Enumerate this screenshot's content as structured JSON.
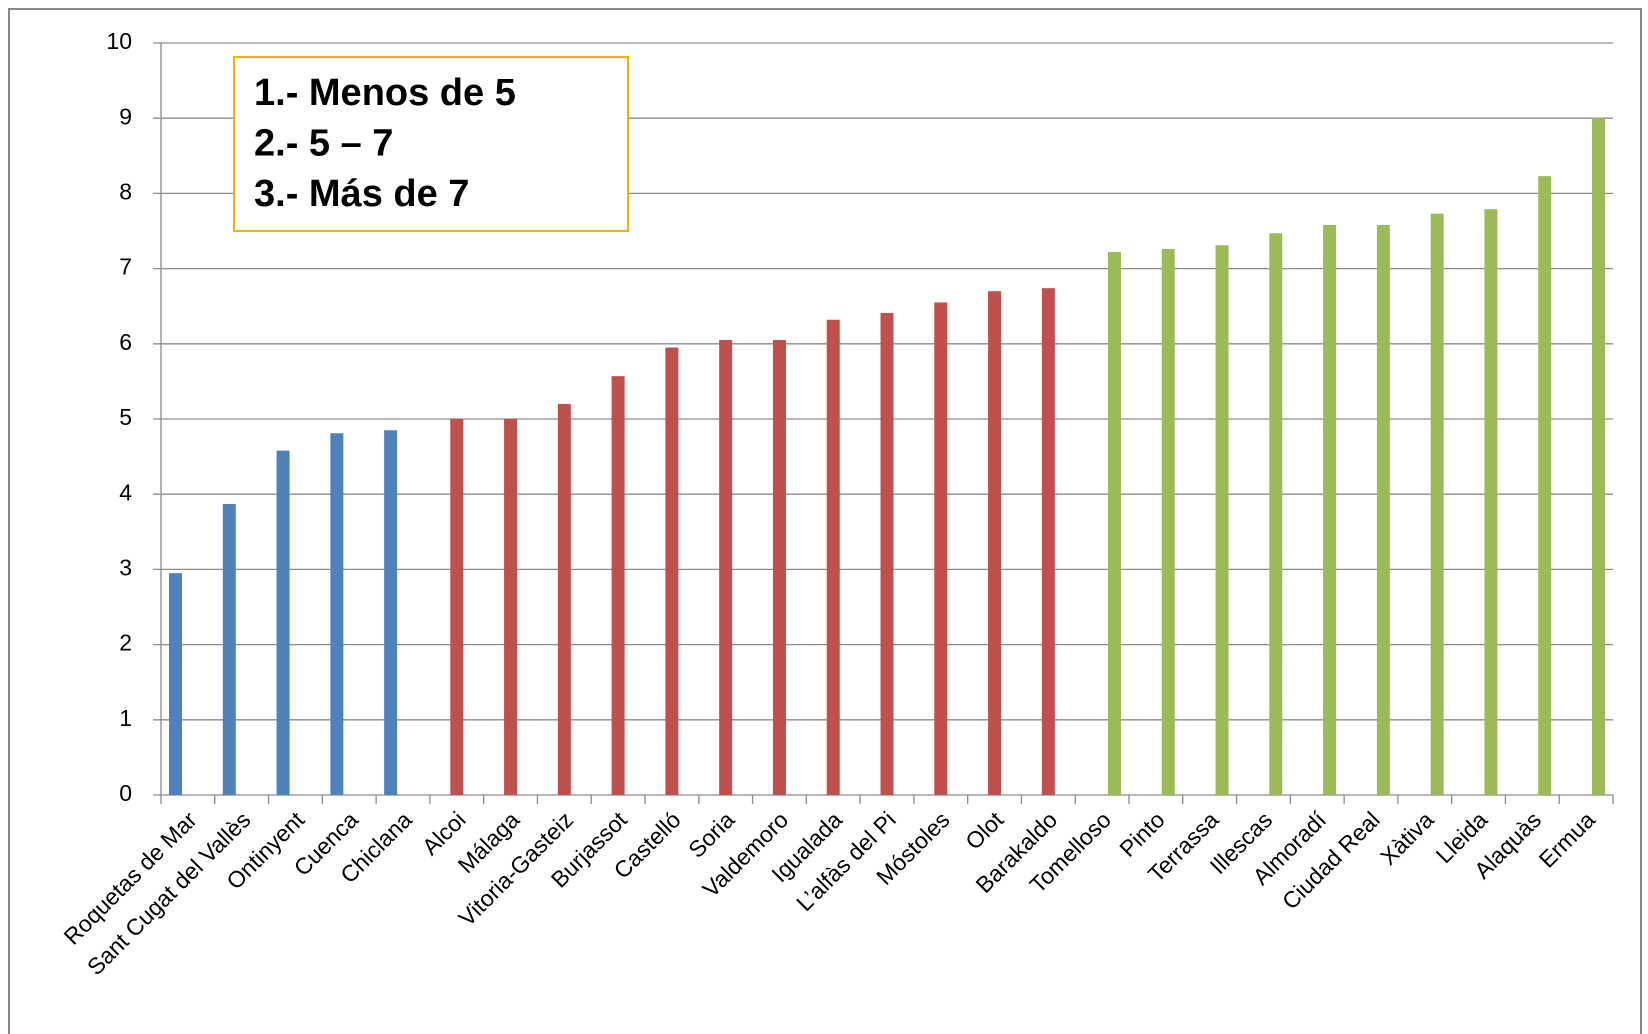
{
  "chart_data": {
    "type": "bar",
    "categories": [
      "Roquetas de Mar",
      "Sant Cugat del Vallès",
      "Ontinyent",
      "Cuenca",
      "Chiclana",
      "Alcoi",
      "Málaga",
      "Vitoria-Gasteiz",
      "Burjassot",
      "Castelló",
      "Soria",
      "Valdemoro",
      "Igualada",
      "L’alfàs del Pi",
      "Móstoles",
      "Olot",
      "Barakaldo",
      "Tomelloso",
      "Pinto",
      "Terrassa",
      "Illescas",
      "Almoradí",
      "Ciudad Real",
      "Xàtiva",
      "Lleida",
      "Alaquàs",
      "Ermua"
    ],
    "series": [
      {
        "name": "1.- Menos de 5",
        "color": "#4f81bd",
        "label_color": "#0070c0",
        "values": [
          2.95,
          3.87,
          4.58,
          4.81,
          4.85,
          null,
          null,
          null,
          null,
          null,
          null,
          null,
          null,
          null,
          null,
          null,
          null,
          null,
          null,
          null,
          null,
          null,
          null,
          null,
          null,
          null,
          null
        ]
      },
      {
        "name": "2.- 5 – 7",
        "color": "#c0504d",
        "label_color": "#ff0000",
        "values": [
          null,
          null,
          null,
          null,
          null,
          5.0,
          5.0,
          5.2,
          5.57,
          5.95,
          6.05,
          6.05,
          6.32,
          6.41,
          6.55,
          6.7,
          6.74,
          null,
          null,
          null,
          null,
          null,
          null,
          null,
          null,
          null,
          null
        ]
      },
      {
        "name": "3.- Más de 7",
        "color": "#9bbb59",
        "label_color": "#66c566",
        "values": [
          null,
          null,
          null,
          null,
          null,
          null,
          null,
          null,
          null,
          null,
          null,
          null,
          null,
          null,
          null,
          null,
          null,
          7.22,
          7.26,
          7.31,
          7.47,
          7.58,
          7.58,
          7.73,
          7.79,
          8.23,
          9.0
        ]
      }
    ],
    "ylim": [
      0,
      10
    ],
    "yticks": [
      0,
      1,
      2,
      3,
      4,
      5,
      6,
      7,
      8,
      9,
      10
    ],
    "grid": true
  }
}
